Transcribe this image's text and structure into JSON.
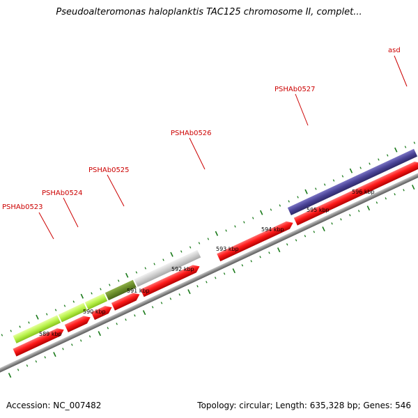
{
  "title": "Pseudoalteromonas haloplanktis TAC125 chromosome II, complet...",
  "footer": {
    "accession": "Accession: NC_007482",
    "summary": "Topology: circular; Length: 635,328 bp; Genes: 546"
  },
  "colors": {
    "cds_arrow": "#ff1a1a",
    "backbone": "#8c8c8c",
    "tick": "#1a7a1a",
    "label": "#cc0000"
  },
  "axis": {
    "labels": [
      "589 kbp",
      "590 kbp",
      "591 kbp",
      "592 kbp",
      "593 kbp",
      "594 kbp",
      "595 kbp",
      "596 kbp"
    ]
  },
  "features": {
    "labels": [
      {
        "name": "PSHAb0523"
      },
      {
        "name": "PSHAb0524"
      },
      {
        "name": "PSHAb0525"
      },
      {
        "name": "PSHAb0526"
      },
      {
        "name": "PSHAb0527"
      },
      {
        "name": "asd"
      }
    ]
  }
}
